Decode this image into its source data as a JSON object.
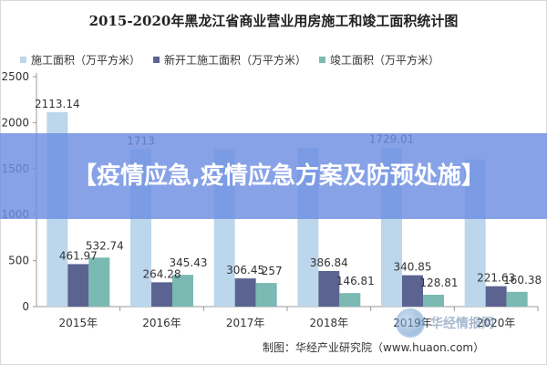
{
  "chart_data": {
    "type": "bar",
    "title": "2015-2020年黑龙江省商业营业用房施工和竣工面积统计图",
    "categories": [
      "2015年",
      "2016年",
      "2017年",
      "2018年",
      "2019年",
      "2020年"
    ],
    "series": [
      {
        "name": "施工面积（万平方米）",
        "color": "#bcd6ec",
        "values": [
          2113.14,
          1713,
          1711,
          1730,
          1729.01,
          1600
        ]
      },
      {
        "name": "新开工施工面积（万平方米）",
        "color": "#5b6390",
        "values": [
          461.97,
          264.28,
          306.45,
          386.84,
          340.85,
          221.63
        ]
      },
      {
        "name": "竣工面积（万平方米）",
        "color": "#7bb9b3",
        "values": [
          532.74,
          345.43,
          257,
          146.81,
          128.81,
          160.38
        ]
      }
    ],
    "data_labels": [
      [
        "2113.14",
        "1713",
        "",
        "",
        "1729.01",
        ""
      ],
      [
        "461.97",
        "264.28",
        "306.45",
        "386.84",
        "340.85",
        "221.63"
      ],
      [
        "532.74",
        "345.43",
        "257",
        "146.81",
        "128.81",
        "160.38"
      ]
    ],
    "yticks": [
      "0",
      "500",
      "1000",
      "1500",
      "2000",
      "2500"
    ],
    "ylim": [
      0,
      2500
    ],
    "grid": false,
    "legend_position": "top"
  },
  "overlay_banner": {
    "text": "【疫情应急,疫情应急方案及防预处施】"
  },
  "source_note": "制图：华经产业研究院（www.huaon.com）",
  "watermark": {
    "text": "华经情报网",
    "icon": "huajing-logo-icon"
  }
}
